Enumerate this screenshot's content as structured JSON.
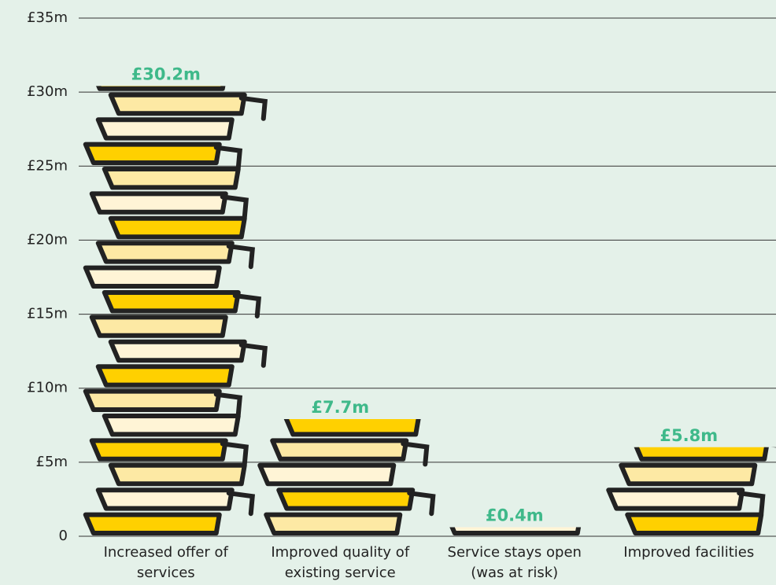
{
  "chart_data": {
    "type": "bar",
    "categories": [
      "Increased offer of services",
      "Improved quality of existing service",
      "Service stays open (was at risk)",
      "Improved facilities"
    ],
    "values": [
      30.2,
      7.7,
      0.4,
      5.8
    ],
    "value_labels": [
      "£30.2m",
      "£7.7m",
      "£0.4m",
      "£5.8m"
    ],
    "colors": [
      "#ffd000",
      "#fde9a4",
      "#fff4d6"
    ],
    "ylim": [
      0,
      35
    ],
    "yticks": [
      0,
      {
        "value": 5,
        "label": "£5m"
      },
      {
        "value": 10,
        "label": "£10m"
      },
      {
        "value": 15,
        "label": "£15m"
      },
      {
        "value": 20,
        "label": "£20m"
      },
      {
        "value": 25,
        "label": "£25m"
      },
      {
        "value": 30,
        "label": "£30m"
      },
      {
        "value": 35,
        "label": "£35m"
      }
    ],
    "grid": true
  }
}
